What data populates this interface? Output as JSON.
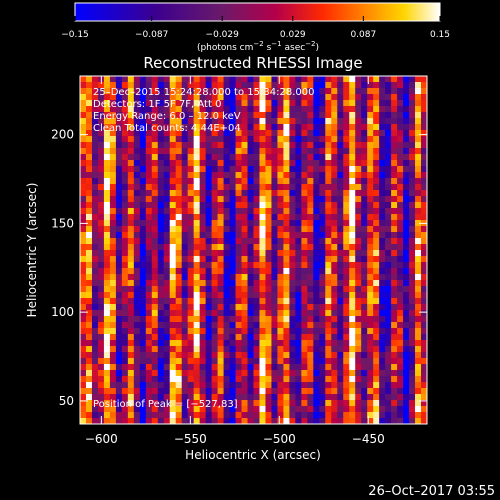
{
  "chart_data": {
    "type": "heatmap",
    "title": "Reconstructed RHESSI Image",
    "xlabel": "Heliocentric X (arcsec)",
    "ylabel": "Heliocentric Y (arcsec)",
    "xlim": [
      -612,
      -417
    ],
    "ylim": [
      37,
      233
    ],
    "x_ticks": [
      -600,
      -550,
      -500,
      -450
    ],
    "x_tick_labels": [
      "−600",
      "−550",
      "−500",
      "−450"
    ],
    "y_ticks": [
      50,
      100,
      150,
      200
    ],
    "y_tick_labels": [
      "50",
      "100",
      "150",
      "200"
    ],
    "colorbar": {
      "min": -0.15,
      "max": 0.15,
      "ticks": [
        -0.15,
        -0.087,
        -0.029,
        0.029,
        0.087,
        0.15
      ],
      "tick_labels": [
        "−0.15",
        "−0.087",
        "−0.029",
        "0.029",
        "0.087",
        "0.15"
      ],
      "unit_main": "(photons cm",
      "unit_sup1": "−2",
      "unit_mid": " s",
      "unit_sup2": "−1",
      "unit_mid2": " asec",
      "unit_sup3": "−2",
      "unit_end": ")"
    },
    "annotations": {
      "time_range": "25–Dec–2015 15:24:28.000 to 15:34:28.000",
      "detectors": "Detectors: 1F 5F 7F, Att 0",
      "energy": "Energy Range: 6.0 – 12.0 keV",
      "clean": "Clean  Total counts: 4.44E+04",
      "peak": "Position of Peak = [−527,83]"
    },
    "grid": false
  },
  "footer": {
    "timestamp": "26–Oct–2017 03:55"
  }
}
